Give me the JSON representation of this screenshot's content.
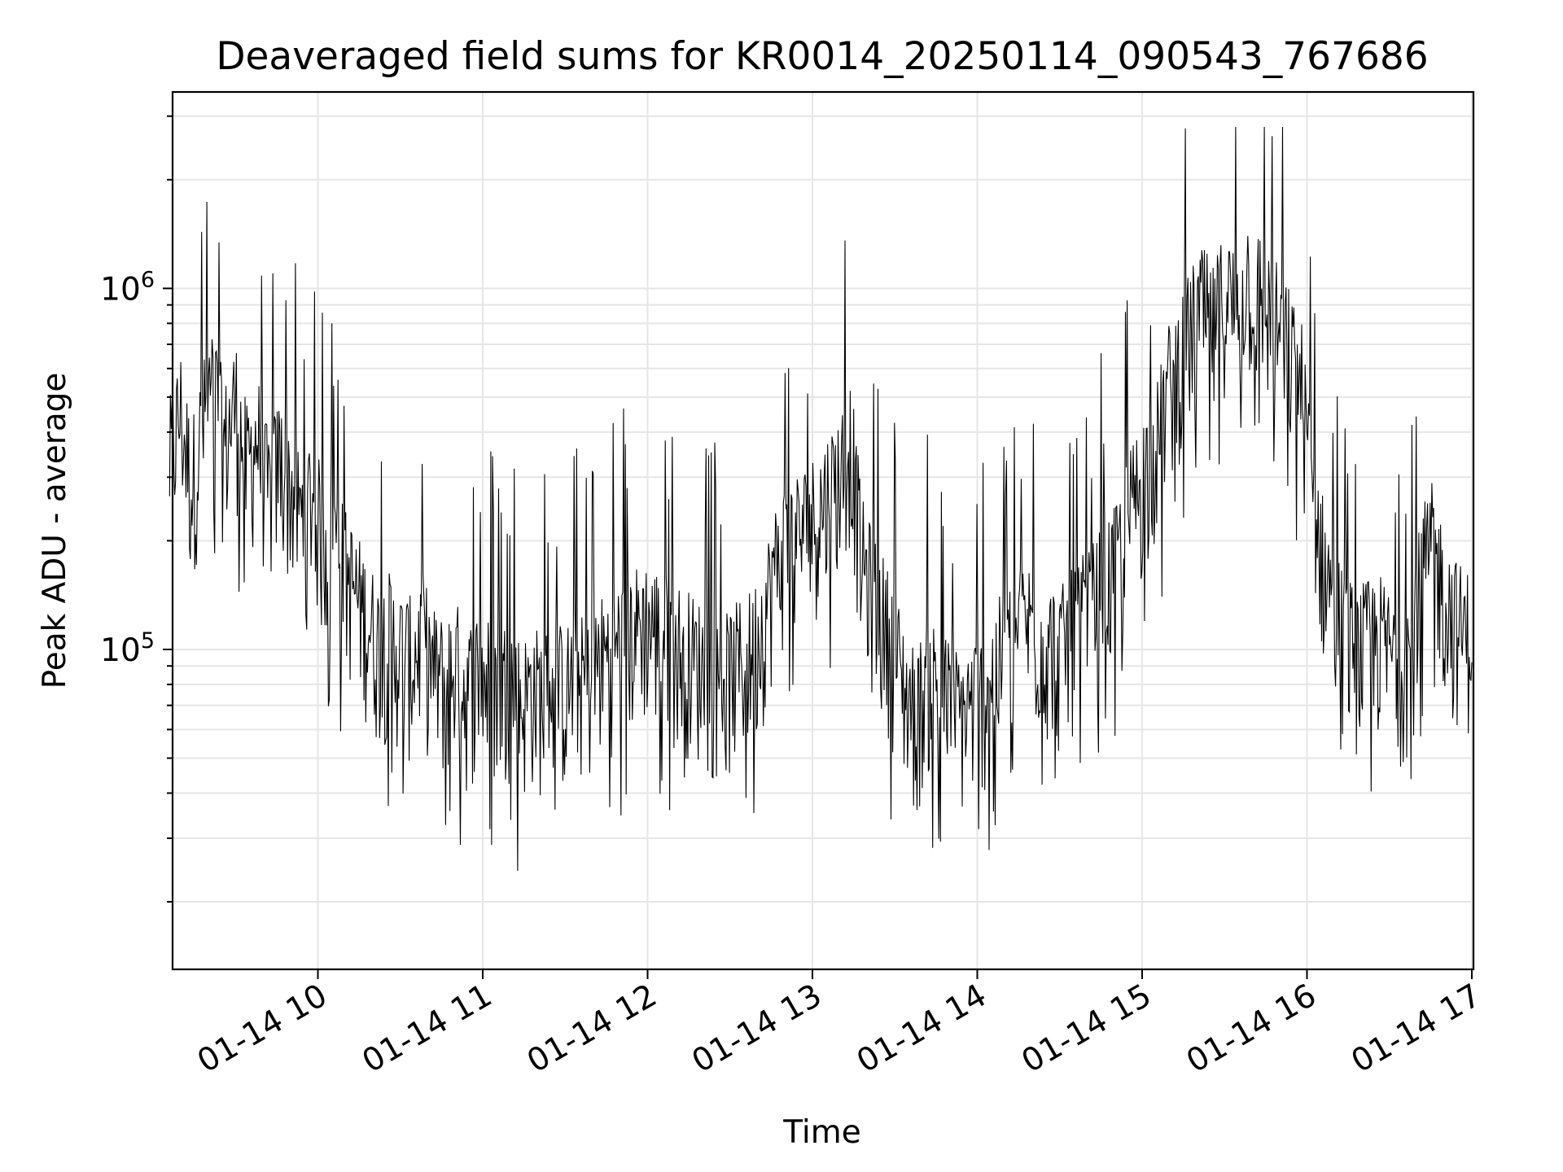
{
  "chart_data": {
    "type": "line",
    "title": "Deaveraged field sums for KR0014_20250114_090543_767686",
    "xlabel": "Time",
    "ylabel": "Peak ADU - average",
    "y_scale": "log",
    "ylim": [
      13000,
      3500000
    ],
    "grid": true,
    "line_color": "#000000",
    "grid_color": "#e6e6e6",
    "x_range": [
      "2025-01-14 09:06",
      "2025-01-14 17:00"
    ],
    "x_ticks": [
      {
        "time": "2025-01-14 10:00",
        "label": "01-14 10"
      },
      {
        "time": "2025-01-14 11:00",
        "label": "01-14 11"
      },
      {
        "time": "2025-01-14 12:00",
        "label": "01-14 12"
      },
      {
        "time": "2025-01-14 13:00",
        "label": "01-14 13"
      },
      {
        "time": "2025-01-14 14:00",
        "label": "01-14 14"
      },
      {
        "time": "2025-01-14 15:00",
        "label": "01-14 15"
      },
      {
        "time": "2025-01-14 16:00",
        "label": "01-14 16"
      },
      {
        "time": "2025-01-14 17:00",
        "label": "01-14 17"
      }
    ],
    "y_ticks": [
      {
        "value": 100000,
        "base": "10",
        "exp": "5"
      },
      {
        "value": 1000000,
        "base": "10",
        "exp": "6"
      }
    ],
    "series": [
      {
        "values": [
          [
            "2025-01-14 09:06",
            300000
          ],
          [
            "2025-01-14 09:10",
            420000
          ],
          [
            "2025-01-14 09:14",
            260000
          ],
          [
            "2025-01-14 09:18",
            380000
          ],
          [
            "2025-01-14 09:22",
            500000
          ],
          [
            "2025-01-14 09:26",
            330000
          ],
          [
            "2025-01-14 09:30",
            450000
          ],
          [
            "2025-01-14 09:34",
            290000
          ],
          [
            "2025-01-14 09:38",
            360000
          ],
          [
            "2025-01-14 09:42",
            240000
          ],
          [
            "2025-01-14 09:46",
            310000
          ],
          [
            "2025-01-14 09:50",
            260000
          ],
          [
            "2025-01-14 09:54",
            210000
          ],
          [
            "2025-01-14 09:58",
            250000
          ],
          [
            "2025-01-14 10:02",
            180000
          ],
          [
            "2025-01-14 10:06",
            190000
          ],
          [
            "2025-01-14 10:10",
            150000
          ],
          [
            "2025-01-14 10:14",
            130000
          ],
          [
            "2025-01-14 10:18",
            110000
          ],
          [
            "2025-01-14 10:22",
            95000
          ],
          [
            "2025-01-14 10:26",
            100000
          ],
          [
            "2025-01-14 10:30",
            90000
          ],
          [
            "2025-01-14 10:34",
            85000
          ],
          [
            "2025-01-14 10:38",
            100000
          ],
          [
            "2025-01-14 10:42",
            80000
          ],
          [
            "2025-01-14 10:46",
            75000
          ],
          [
            "2025-01-14 10:50",
            85000
          ],
          [
            "2025-01-14 10:54",
            70000
          ],
          [
            "2025-01-14 10:58",
            80000
          ],
          [
            "2025-01-14 11:02",
            75000
          ],
          [
            "2025-01-14 11:06",
            70000
          ],
          [
            "2025-01-14 11:10",
            78000
          ],
          [
            "2025-01-14 11:14",
            65000
          ],
          [
            "2025-01-14 11:18",
            72000
          ],
          [
            "2025-01-14 11:22",
            68000
          ],
          [
            "2025-01-14 11:26",
            75000
          ],
          [
            "2025-01-14 11:30",
            70000
          ],
          [
            "2025-01-14 11:34",
            80000
          ],
          [
            "2025-01-14 11:38",
            72000
          ],
          [
            "2025-01-14 11:42",
            85000
          ],
          [
            "2025-01-14 11:46",
            90000
          ],
          [
            "2025-01-14 11:50",
            95000
          ],
          [
            "2025-01-14 11:54",
            100000
          ],
          [
            "2025-01-14 11:58",
            110000
          ],
          [
            "2025-01-14 12:02",
            105000
          ],
          [
            "2025-01-14 12:06",
            100000
          ],
          [
            "2025-01-14 12:10",
            95000
          ],
          [
            "2025-01-14 12:14",
            90000
          ],
          [
            "2025-01-14 12:18",
            85000
          ],
          [
            "2025-01-14 12:22",
            80000
          ],
          [
            "2025-01-14 12:26",
            75000
          ],
          [
            "2025-01-14 12:30",
            78000
          ],
          [
            "2025-01-14 12:34",
            85000
          ],
          [
            "2025-01-14 12:38",
            90000
          ],
          [
            "2025-01-14 12:42",
            110000
          ],
          [
            "2025-01-14 12:46",
            150000
          ],
          [
            "2025-01-14 12:50",
            180000
          ],
          [
            "2025-01-14 12:54",
            190000
          ],
          [
            "2025-01-14 12:58",
            200000
          ],
          [
            "2025-01-14 13:02",
            220000
          ],
          [
            "2025-01-14 13:06",
            250000
          ],
          [
            "2025-01-14 13:10",
            280000
          ],
          [
            "2025-01-14 13:14",
            350000
          ],
          [
            "2025-01-14 13:18",
            160000
          ],
          [
            "2025-01-14 13:22",
            130000
          ],
          [
            "2025-01-14 13:26",
            110000
          ],
          [
            "2025-01-14 13:30",
            90000
          ],
          [
            "2025-01-14 13:34",
            70000
          ],
          [
            "2025-01-14 13:38",
            60000
          ],
          [
            "2025-01-14 13:42",
            80000
          ],
          [
            "2025-01-14 13:46",
            70000
          ],
          [
            "2025-01-14 13:50",
            65000
          ],
          [
            "2025-01-14 13:54",
            60000
          ],
          [
            "2025-01-14 13:58",
            65000
          ],
          [
            "2025-01-14 14:02",
            70000
          ],
          [
            "2025-01-14 14:06",
            80000
          ],
          [
            "2025-01-14 14:10",
            90000
          ],
          [
            "2025-01-14 14:14",
            100000
          ],
          [
            "2025-01-14 14:18",
            110000
          ],
          [
            "2025-01-14 14:22",
            100000
          ],
          [
            "2025-01-14 14:26",
            95000
          ],
          [
            "2025-01-14 14:30",
            90000
          ],
          [
            "2025-01-14 14:34",
            100000
          ],
          [
            "2025-01-14 14:38",
            110000
          ],
          [
            "2025-01-14 14:42",
            120000
          ],
          [
            "2025-01-14 14:46",
            140000
          ],
          [
            "2025-01-14 14:50",
            150000
          ],
          [
            "2025-01-14 14:54",
            200000
          ],
          [
            "2025-01-14 14:58",
            250000
          ],
          [
            "2025-01-14 15:02",
            300000
          ],
          [
            "2025-01-14 15:06",
            350000
          ],
          [
            "2025-01-14 15:10",
            500000
          ],
          [
            "2025-01-14 15:14",
            600000
          ],
          [
            "2025-01-14 15:18",
            700000
          ],
          [
            "2025-01-14 15:22",
            800000
          ],
          [
            "2025-01-14 15:26",
            700000
          ],
          [
            "2025-01-14 15:30",
            900000
          ],
          [
            "2025-01-14 15:34",
            800000
          ],
          [
            "2025-01-14 15:38",
            1000000
          ],
          [
            "2025-01-14 15:42",
            900000
          ],
          [
            "2025-01-14 15:46",
            800000
          ],
          [
            "2025-01-14 15:50",
            700000
          ],
          [
            "2025-01-14 15:54",
            600000
          ],
          [
            "2025-01-14 15:58",
            500000
          ],
          [
            "2025-01-14 16:02",
            250000
          ],
          [
            "2025-01-14 16:06",
            160000
          ],
          [
            "2025-01-14 16:10",
            120000
          ],
          [
            "2025-01-14 16:14",
            100000
          ],
          [
            "2025-01-14 16:18",
            90000
          ],
          [
            "2025-01-14 16:22",
            95000
          ],
          [
            "2025-01-14 16:26",
            100000
          ],
          [
            "2025-01-14 16:30",
            90000
          ],
          [
            "2025-01-14 16:34",
            85000
          ],
          [
            "2025-01-14 16:38",
            95000
          ],
          [
            "2025-01-14 16:42",
            150000
          ],
          [
            "2025-01-14 16:46",
            180000
          ],
          [
            "2025-01-14 16:50",
            130000
          ],
          [
            "2025-01-14 16:54",
            110000
          ],
          [
            "2025-01-14 16:58",
            100000
          ],
          [
            "2025-01-14 17:00",
            110000
          ]
        ]
      }
    ]
  }
}
